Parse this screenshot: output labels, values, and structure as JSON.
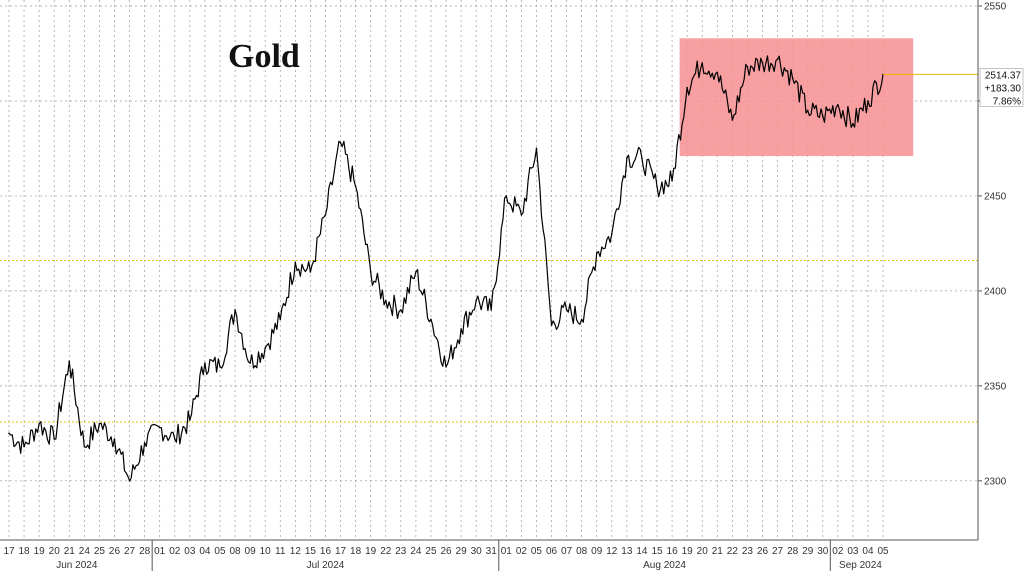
{
  "chart_data": {
    "type": "line",
    "title": "Gold",
    "xlabel": "",
    "ylabel": "",
    "ylim": [
      2272,
      2550
    ],
    "grid": true,
    "legend": "none",
    "yticks": [
      2300,
      2350,
      2400,
      2450,
      2500,
      2550
    ],
    "x_day_labels": [
      "17",
      "18",
      "19",
      "20",
      "21",
      "24",
      "25",
      "26",
      "27",
      "28",
      "01",
      "02",
      "03",
      "04",
      "05",
      "08",
      "09",
      "10",
      "11",
      "12",
      "15",
      "16",
      "17",
      "18",
      "19",
      "22",
      "23",
      "24",
      "25",
      "26",
      "29",
      "30",
      "31",
      "01",
      "02",
      "05",
      "06",
      "07",
      "08",
      "09",
      "12",
      "13",
      "14",
      "15",
      "16",
      "19",
      "20",
      "21",
      "22",
      "23",
      "26",
      "27",
      "28",
      "29",
      "30",
      "02",
      "03",
      "04",
      "05"
    ],
    "months": [
      {
        "label": "Jun 2024",
        "start_index": 0
      },
      {
        "label": "Jul 2024",
        "start_index": 10
      },
      {
        "label": "Aug 2024",
        "start_index": 33
      },
      {
        "label": "Sep 2024",
        "start_index": 55
      }
    ],
    "series": [
      {
        "values": [
          2325,
          2318,
          2330,
          2322,
          2363,
          2318,
          2330,
          2322,
          2300,
          2320,
          2328,
          2322,
          2332,
          2362,
          2360,
          2390,
          2362,
          2370,
          2385,
          2415,
          2410,
          2440,
          2478,
          2455,
          2410,
          2395,
          2390,
          2410,
          2385,
          2360,
          2380,
          2395,
          2390,
          2450,
          2440,
          2475,
          2382,
          2390,
          2385,
          2420,
          2430,
          2470,
          2470,
          2455,
          2458,
          2507,
          2520,
          2515,
          2490,
          2518,
          2520,
          2522,
          2512,
          2495,
          2492,
          2498,
          2488,
          2500,
          2514
        ]
      }
    ],
    "reference_lines": [
      2416,
      2331
    ],
    "highlight_range": {
      "x_start_index": 44.5,
      "x_end_index": 60,
      "y_from": 2471,
      "y_to": 2533
    },
    "last_value_labels": [
      "2514.37",
      "+183.30",
      "7.86%"
    ],
    "colors": {
      "line": "#000000",
      "highlight": "#f78f91",
      "reference": "#e8c400",
      "last_marker": "#f0b400"
    }
  }
}
